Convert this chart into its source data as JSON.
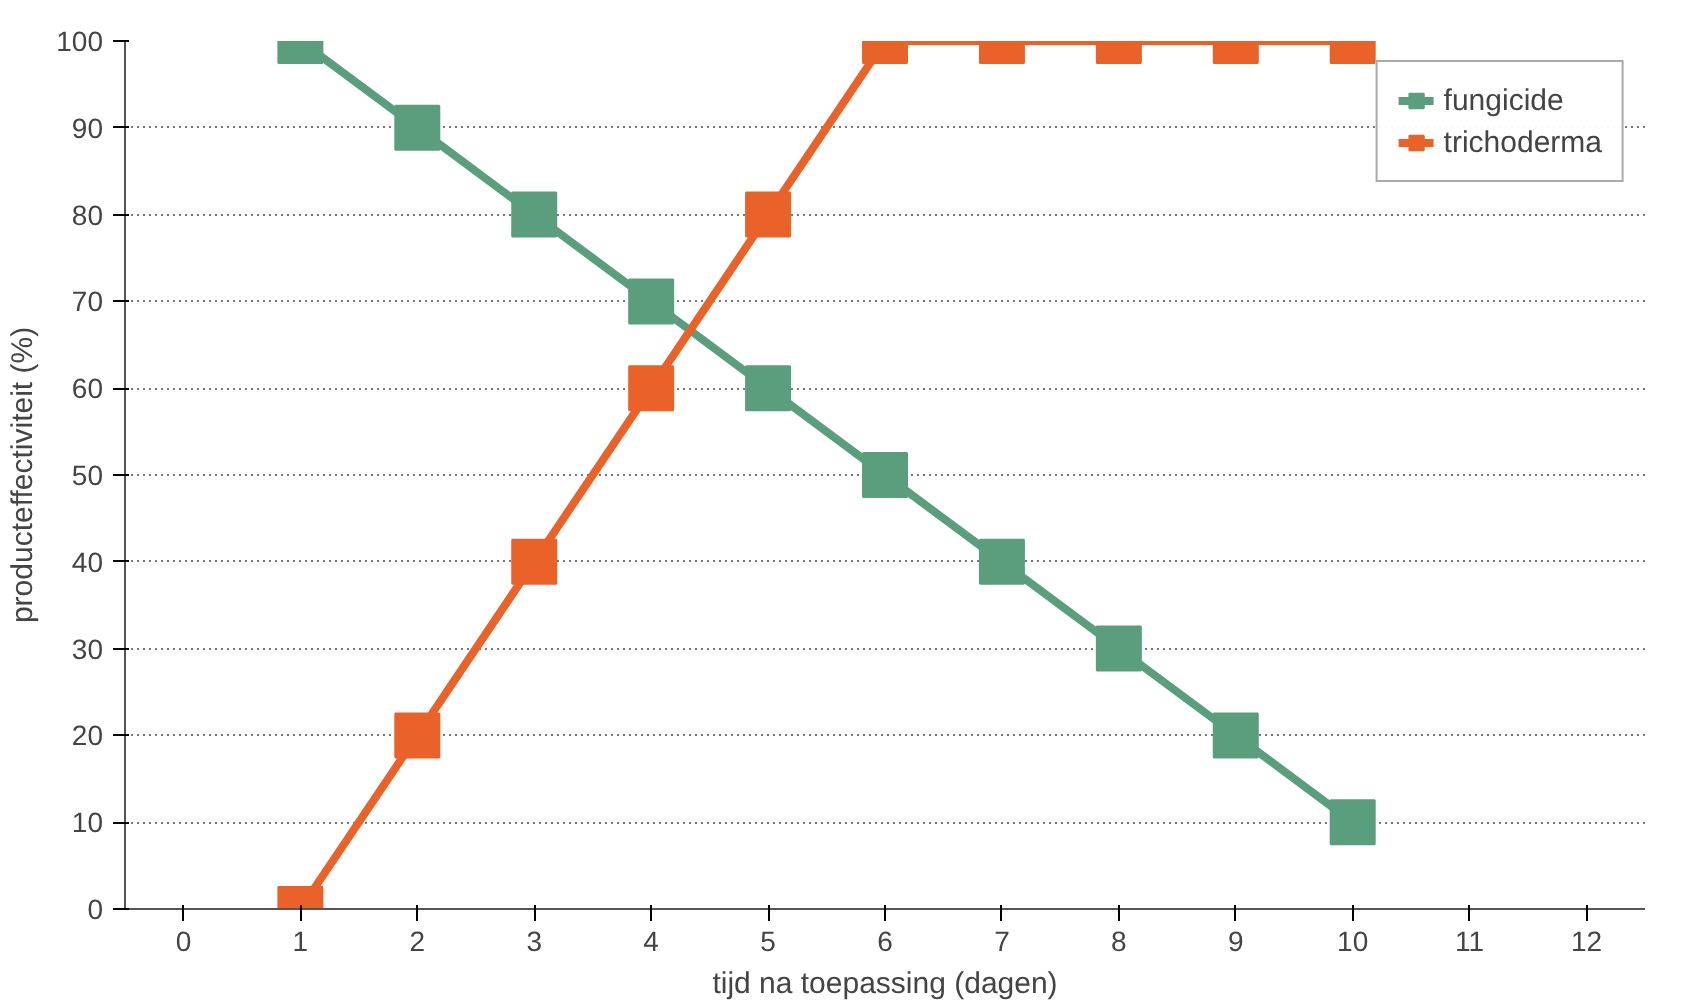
{
  "chart_data": {
    "type": "line",
    "xlabel": "tijd na toepassing (dagen)",
    "ylabel": "producteffectiviteit (%)",
    "x": [
      1,
      2,
      3,
      4,
      5,
      6,
      7,
      8,
      9,
      10
    ],
    "series": [
      {
        "name": "fungicide",
        "color": "#5b9e7e",
        "values": [
          100,
          90,
          80,
          70,
          60,
          50,
          40,
          30,
          20,
          10
        ]
      },
      {
        "name": "trichoderma",
        "color": "#e8622a",
        "values": [
          0,
          20,
          40,
          60,
          80,
          100,
          100,
          100,
          100,
          100
        ]
      }
    ],
    "xlim": [
      -0.5,
      12.5
    ],
    "xticks": [
      0,
      1,
      2,
      3,
      4,
      5,
      6,
      7,
      8,
      9,
      10,
      11,
      12
    ],
    "ylim": [
      0,
      100
    ],
    "yticks": [
      0,
      10,
      20,
      30,
      40,
      50,
      60,
      70,
      80,
      90,
      100
    ],
    "grid": "y",
    "legend": "top right",
    "marker": "square",
    "line_style": "solid"
  }
}
